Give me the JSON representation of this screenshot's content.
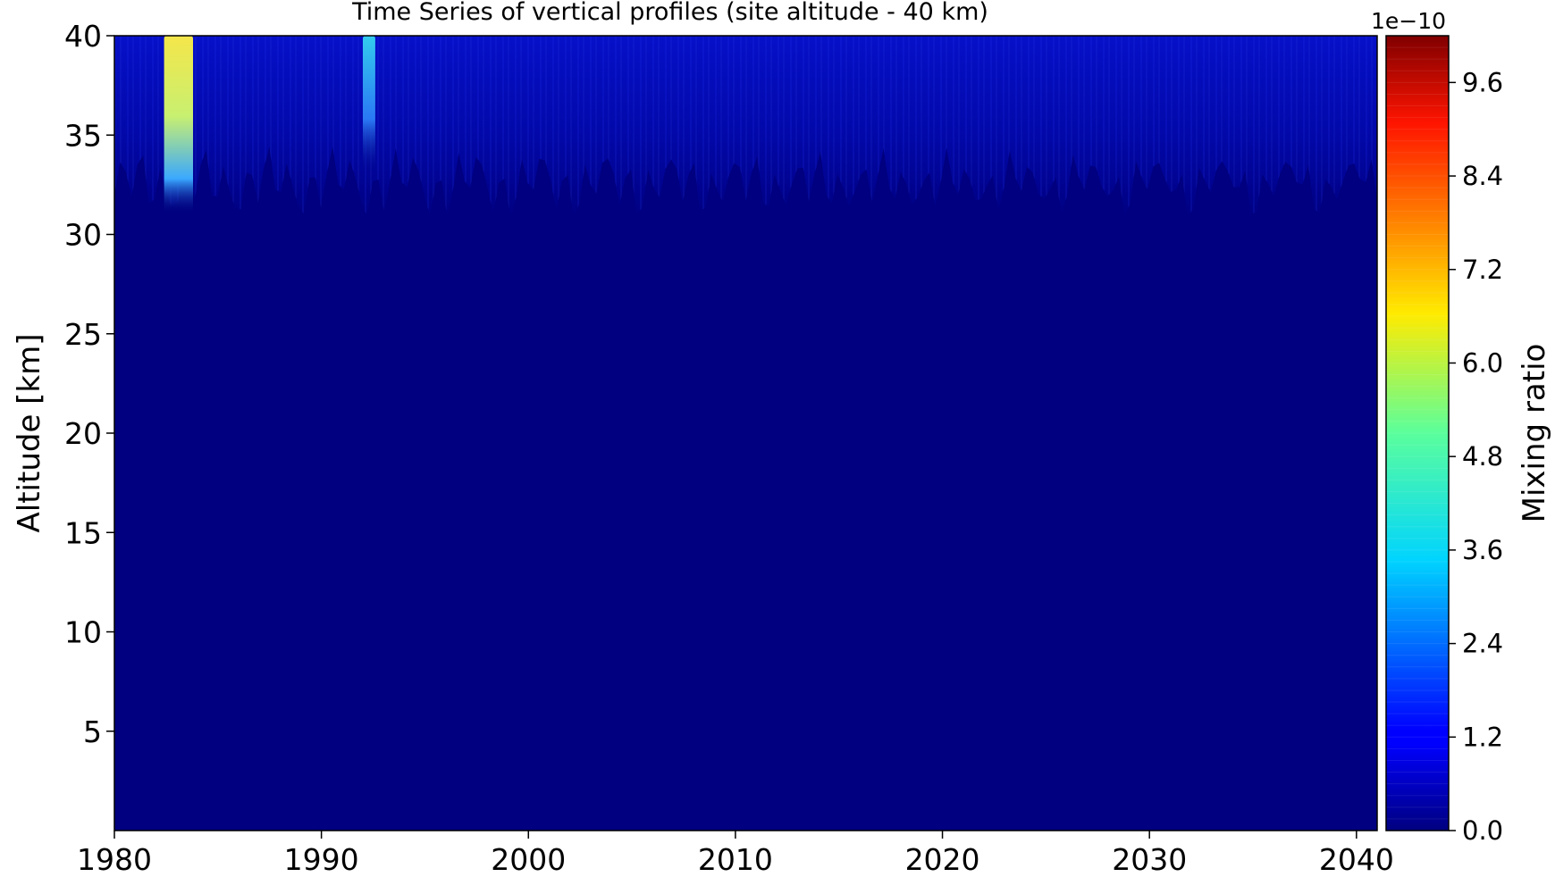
{
  "chart_data": {
    "type": "heatmap",
    "title": "Time Series of vertical profiles (site altitude - 40 km)",
    "xlabel": "",
    "ylabel": "Altitude [km]",
    "colorbar_label": "Mixing ratio",
    "colorbar_exponent": "1e−10",
    "xlim": [
      1980,
      2041
    ],
    "ylim": [
      0,
      40
    ],
    "xticks": [
      "1980",
      "1990",
      "2000",
      "2010",
      "2020",
      "2030",
      "2040"
    ],
    "yticks": [
      "5",
      "10",
      "15",
      "20",
      "25",
      "30",
      "35",
      "40"
    ],
    "colorbar_ticks": [
      "0.0",
      "1.2",
      "2.4",
      "3.6",
      "4.8",
      "6.0",
      "7.2",
      "8.4",
      "9.6"
    ],
    "colorbar_range": [
      0.0,
      10.2
    ],
    "colormap": "jet",
    "colors": {
      "background_low": "#000080",
      "upper_layer": "#0000b0",
      "peak_hot": "#f5e64a",
      "peak_cyan": "#33ccee"
    },
    "features": [
      {
        "year_start": 1982.4,
        "year_end": 1983.8,
        "alt_min": 31,
        "alt_max": 40,
        "peak_value": 6.6
      },
      {
        "year_start": 1992.0,
        "year_end": 1992.6,
        "alt_min": 33,
        "alt_max": 40,
        "peak_value": 3.4
      }
    ],
    "upper_layer_base_km": 32,
    "grid": false
  }
}
